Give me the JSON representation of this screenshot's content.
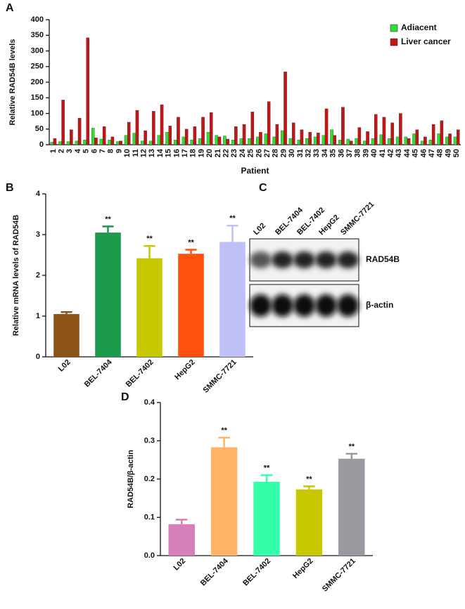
{
  "chart_data": [
    {
      "type": "bar",
      "panel_label": "A",
      "y_label": "Relative RAD54B levels",
      "x_label": "Patient",
      "categories": [
        "1",
        "2",
        "3",
        "4",
        "5",
        "6",
        "7",
        "8",
        "9",
        "10",
        "11",
        "12",
        "13",
        "14",
        "15",
        "16",
        "17",
        "18",
        "19",
        "20",
        "21",
        "22",
        "23",
        "24",
        "25",
        "26",
        "27",
        "28",
        "29",
        "30",
        "31",
        "32",
        "33",
        "34",
        "35",
        "36",
        "37",
        "38",
        "39",
        "40",
        "41",
        "42",
        "43",
        "44",
        "45",
        "46",
        "47",
        "48",
        "49",
        "50"
      ],
      "series": [
        {
          "name": "Adiacent",
          "color": "#33dd33",
          "values": [
            8,
            10,
            10,
            12,
            15,
            53,
            18,
            15,
            10,
            30,
            37,
            12,
            12,
            30,
            40,
            15,
            25,
            15,
            20,
            40,
            30,
            28,
            15,
            20,
            20,
            25,
            35,
            25,
            45,
            20,
            15,
            20,
            25,
            30,
            48,
            15,
            18,
            20,
            12,
            20,
            32,
            20,
            25,
            25,
            35,
            12,
            15,
            35,
            25,
            25
          ]
        },
        {
          "name": "Liver cancer",
          "color": "#c41414",
          "values": [
            20,
            143,
            48,
            85,
            342,
            22,
            58,
            25,
            12,
            72,
            110,
            45,
            107,
            128,
            60,
            88,
            50,
            58,
            88,
            103,
            25,
            18,
            58,
            65,
            105,
            40,
            138,
            65,
            233,
            70,
            48,
            40,
            38,
            115,
            30,
            120,
            12,
            55,
            42,
            97,
            88,
            70,
            100,
            20,
            48,
            25,
            65,
            77,
            35,
            48
          ]
        }
      ],
      "ylim": [
        0,
        400
      ],
      "yticks": [
        0,
        50,
        100,
        150,
        200,
        250,
        300,
        350,
        400
      ],
      "legend": "upper right"
    },
    {
      "type": "bar",
      "panel_label": "B",
      "y_label": "Relative mRNA levels of RAD54B",
      "categories": [
        "L02",
        "BEL-7404",
        "BEL-7402",
        "HepG2",
        "SMMC-7721"
      ],
      "values": [
        1.05,
        3.05,
        2.42,
        2.53,
        2.82
      ],
      "errors": [
        0.05,
        0.15,
        0.3,
        0.1,
        0.4
      ],
      "colors": [
        "#8b5416",
        "#1a9a4a",
        "#c8c800",
        "#ff5010",
        "#c0c0f8"
      ],
      "annotations": [
        null,
        "**",
        "**",
        "**",
        "**"
      ],
      "ylim": [
        0,
        4
      ],
      "yticks": [
        0,
        1,
        2,
        3,
        4
      ]
    },
    {
      "type": "bar",
      "panel_label": "D",
      "y_label": "RAD54B/β-actin",
      "categories": [
        "L02",
        "BEL-7404",
        "BEL-7402",
        "HepG2",
        "SMMC-7721"
      ],
      "values": [
        0.082,
        0.283,
        0.193,
        0.173,
        0.253
      ],
      "errors": [
        0.012,
        0.025,
        0.017,
        0.008,
        0.013
      ],
      "colors": [
        "#d67fb8",
        "#ffb366",
        "#33ffaa",
        "#c8c800",
        "#99999f"
      ],
      "annotations": [
        null,
        "**",
        "**",
        "**",
        "**"
      ],
      "ylim": [
        0,
        0.4
      ],
      "yticks": [
        {
          "value": 0,
          "label": "0.0"
        },
        0.1,
        0.2,
        0.3,
        0.4
      ]
    }
  ],
  "blot": {
    "panel_label": "C",
    "lanes": [
      "L02",
      "BEL-7404",
      "BEL-7402",
      "HepG2",
      "SMMC-7721"
    ],
    "rows": [
      "RAD54B",
      "β-actin"
    ]
  }
}
